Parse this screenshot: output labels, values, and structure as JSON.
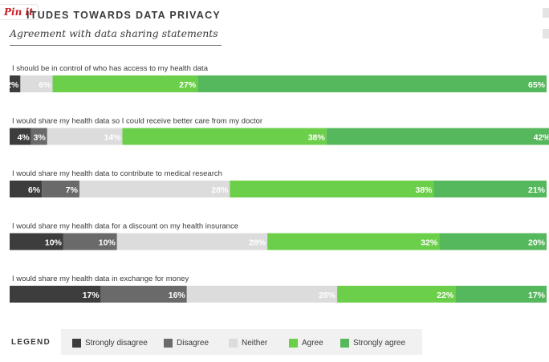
{
  "pin_label": "Pin it",
  "title": "ITUDES TOWARDS DATA PRIVACY",
  "subtitle": "Agreement with data sharing statements",
  "colors": {
    "strongly_disagree": "#3d3d3d",
    "disagree": "#6a6a6a",
    "neither": "#dcdcdc",
    "agree": "#6ccf4a",
    "strongly_agree": "#56b85c"
  },
  "legend": {
    "title": "LEGEND",
    "items": [
      {
        "label": "Strongly disagree",
        "key": "strongly_disagree"
      },
      {
        "label": "Disagree",
        "key": "disagree"
      },
      {
        "label": "Neither",
        "key": "neither"
      },
      {
        "label": "Agree",
        "key": "agree"
      },
      {
        "label": "Strongly agree",
        "key": "strongly_agree"
      }
    ]
  },
  "chart_data": {
    "type": "bar",
    "stacked": true,
    "orientation": "horizontal",
    "title": "ITUDES TOWARDS DATA PRIVACY",
    "subtitle": "Agreement with data sharing statements",
    "categories": [
      "I should be in control of who has access to my health data",
      "I would share my health data so I could receive better care from my doctor",
      "I would share my health data to contribute to medical research",
      "I would share my health data for a discount on my health insurance",
      "I would share my health data in exchange for money"
    ],
    "series": [
      {
        "name": "Strongly disagree",
        "key": "strongly_disagree",
        "values": [
          2,
          4,
          6,
          10,
          17
        ]
      },
      {
        "name": "Disagree",
        "key": "disagree",
        "values": [
          0,
          3,
          7,
          10,
          16
        ]
      },
      {
        "name": "Neither",
        "key": "neither",
        "values": [
          6,
          14,
          28,
          28,
          28
        ]
      },
      {
        "name": "Agree",
        "key": "agree",
        "values": [
          27,
          38,
          38,
          32,
          22
        ]
      },
      {
        "name": "Strongly agree",
        "key": "strongly_agree",
        "values": [
          65,
          42,
          21,
          20,
          17
        ]
      }
    ],
    "value_labels": [
      [
        "2%",
        "",
        "6%",
        "27%",
        "65%"
      ],
      [
        "4%",
        "3%",
        "14%",
        "38%",
        "42%"
      ],
      [
        "6%",
        "7%",
        "28%",
        "38%",
        "21%"
      ],
      [
        "10%",
        "10%",
        "28%",
        "32%",
        "20%"
      ],
      [
        "17%",
        "16%",
        "28%",
        "22%",
        "17%"
      ]
    ],
    "unit": "%",
    "legend_position": "bottom"
  }
}
